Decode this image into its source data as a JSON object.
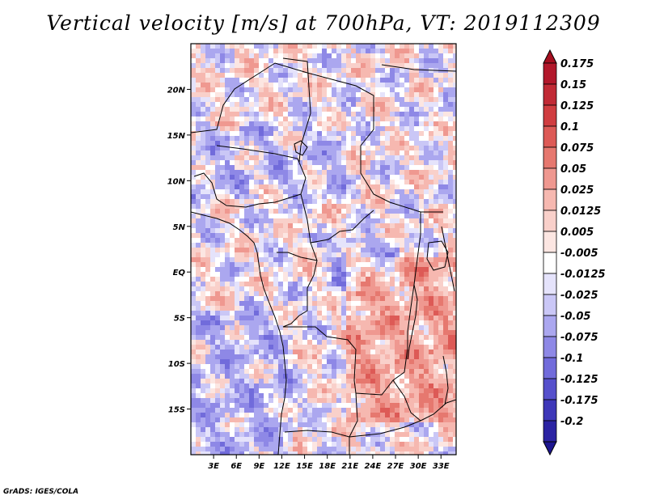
{
  "title": "Vertical velocity [m/s] at 700hPa, VT: 2019112309",
  "credit": "GrADS: IGES/COLA",
  "map": {
    "lon_range": [
      0,
      35
    ],
    "lat_range": [
      -20,
      25
    ],
    "lon_ticks": [
      {
        "value": 3,
        "label": "3E"
      },
      {
        "value": 6,
        "label": "6E"
      },
      {
        "value": 9,
        "label": "9E"
      },
      {
        "value": 12,
        "label": "12E"
      },
      {
        "value": 15,
        "label": "15E"
      },
      {
        "value": 18,
        "label": "18E"
      },
      {
        "value": 21,
        "label": "21E"
      },
      {
        "value": 24,
        "label": "24E"
      },
      {
        "value": 27,
        "label": "27E"
      },
      {
        "value": 30,
        "label": "30E"
      },
      {
        "value": 33,
        "label": "33E"
      }
    ],
    "lat_ticks": [
      {
        "value": 20,
        "label": "20N"
      },
      {
        "value": 15,
        "label": "15N"
      },
      {
        "value": 10,
        "label": "10N"
      },
      {
        "value": 5,
        "label": "5N"
      },
      {
        "value": 0,
        "label": "EQ"
      },
      {
        "value": -5,
        "label": "5S"
      },
      {
        "value": -10,
        "label": "10S"
      },
      {
        "value": -15,
        "label": "15S"
      }
    ]
  },
  "colorbar": {
    "levels": [
      {
        "label": "0.175",
        "color": "#b2182b"
      },
      {
        "label": "0.15",
        "color": "#c12a35"
      },
      {
        "label": "0.125",
        "color": "#d03d40"
      },
      {
        "label": "0.1",
        "color": "#dd5a56"
      },
      {
        "label": "0.075",
        "color": "#e6786f"
      },
      {
        "label": "0.05",
        "color": "#ef9890"
      },
      {
        "label": "0.025",
        "color": "#f6b8b0"
      },
      {
        "label": "0.0125",
        "color": "#f9d0ca"
      },
      {
        "label": "0.005",
        "color": "#fce6e2"
      },
      {
        "label": "-0.005",
        "color": "#ffffff"
      },
      {
        "label": "-0.0125",
        "color": "#e5e3fb"
      },
      {
        "label": "-0.025",
        "color": "#cac7f6"
      },
      {
        "label": "-0.05",
        "color": "#aba7ef"
      },
      {
        "label": "-0.075",
        "color": "#8e88e6"
      },
      {
        "label": "-0.1",
        "color": "#716bdb"
      },
      {
        "label": "-0.125",
        "color": "#5650cc"
      },
      {
        "label": "-0.175",
        "color": "#3e37b8"
      },
      {
        "label": "-0.2",
        "color": "#2b23a3"
      }
    ],
    "top_arrow_color": "#a50f20",
    "bottom_arrow_color": "#1d1690"
  }
}
